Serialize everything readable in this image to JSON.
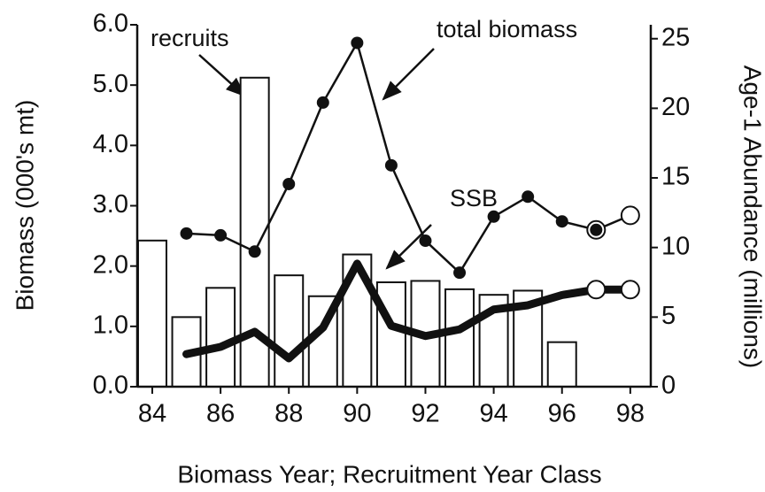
{
  "chart_data": {
    "type": "bar-line",
    "xlabel": "Biomass Year; Recruitment Year Class",
    "ylabel": "Biomass (000's mt)",
    "y2label": "Age-1 Abundance (millions)",
    "xlim": [
      83.56,
      98.6
    ],
    "xticks": [
      84,
      86,
      88,
      90,
      92,
      94,
      96,
      98
    ],
    "ylim": [
      0,
      6
    ],
    "yticks": [
      {
        "value": 0,
        "label": "0.0"
      },
      {
        "value": 1,
        "label": "1.0"
      },
      {
        "value": 2,
        "label": "2.0"
      },
      {
        "value": 3,
        "label": "3.0"
      },
      {
        "value": 4,
        "label": "4.0"
      },
      {
        "value": 5,
        "label": "5.0"
      },
      {
        "value": 6,
        "label": "6.0"
      }
    ],
    "y2lim": [
      0,
      26
    ],
    "y2ticks": [
      0,
      5,
      10,
      15,
      20,
      25
    ],
    "series": [
      {
        "name": "recruits",
        "kind": "bar",
        "axis": "y2",
        "color": "#ffffff",
        "x": [
          84,
          85,
          86,
          87,
          88,
          89,
          90,
          91,
          92,
          93,
          94,
          95,
          96
        ],
        "values": [
          10.5,
          5.0,
          7.1,
          22.2,
          8.0,
          6.5,
          9.5,
          7.5,
          7.6,
          7.0,
          6.6,
          6.9,
          3.2
        ]
      },
      {
        "name": "total biomass",
        "kind": "line",
        "color": "#111111",
        "x": [
          85,
          86,
          87,
          88,
          89,
          90,
          91,
          92,
          93,
          94,
          95,
          96,
          97,
          98
        ],
        "values": [
          2.54,
          2.51,
          2.24,
          3.36,
          4.71,
          5.7,
          3.67,
          2.42,
          1.89,
          2.82,
          3.15,
          2.74,
          2.6,
          2.84
        ],
        "markers": [
          "filled",
          "filled",
          "filled",
          "filled",
          "filled",
          "filled",
          "filled",
          "filled",
          "filled",
          "filled",
          "filled",
          "filled",
          "ringed",
          "open"
        ]
      },
      {
        "name": "SSB",
        "kind": "thick-line",
        "color": "#111111",
        "x": [
          85,
          86,
          87,
          88,
          89,
          90,
          91,
          92,
          93,
          94,
          95,
          96,
          97,
          98
        ],
        "values": [
          0.54,
          0.66,
          0.91,
          0.47,
          0.98,
          2.04,
          1.01,
          0.84,
          0.95,
          1.28,
          1.35,
          1.52,
          1.61,
          1.61
        ],
        "markers": [
          "none",
          "none",
          "none",
          "none",
          "none",
          "none",
          "none",
          "none",
          "none",
          "none",
          "none",
          "none",
          "open",
          "open"
        ]
      }
    ],
    "annotations": [
      "recruits",
      "total biomass",
      "SSB"
    ]
  }
}
